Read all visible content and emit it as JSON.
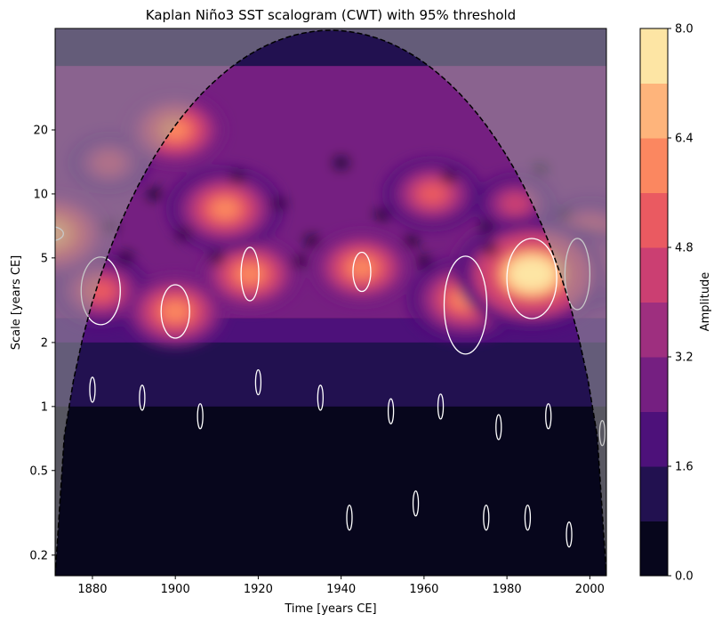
{
  "chart_data": {
    "type": "heatmap",
    "title": "Kaplan Niño3 SST scalogram (CWT) with 95% threshold",
    "xlabel": "Time [years CE]",
    "ylabel": "Scale [years CE]",
    "xlim": [
      1871,
      2004
    ],
    "ylim": [
      0.16,
      60
    ],
    "yscale": "log",
    "xticks": [
      "1880",
      "1900",
      "1920",
      "1940",
      "1960",
      "1980",
      "2000"
    ],
    "yticks": [
      "0.2",
      "0.5",
      "1",
      "2",
      "5",
      "10",
      "20"
    ],
    "colorbar": {
      "label": "Amplitude",
      "levels": [
        0.0,
        0.8,
        1.6,
        2.4,
        3.2,
        4.0,
        4.8,
        5.6,
        6.4,
        7.2,
        8.0
      ],
      "ticks": [
        "0.0",
        "1.6",
        "3.2",
        "4.8",
        "6.4",
        "8.0"
      ],
      "colors": [
        "#07061c",
        "#221150",
        "#4d117a",
        "#751f81",
        "#9e2f7f",
        "#cb3f72",
        "#ea5a61",
        "#fb8760",
        "#feb47b",
        "#fde5a4"
      ]
    },
    "cone_of_influence": "dashed black",
    "significance_contour": "white",
    "peaks": [
      {
        "x": 1870,
        "y": 6.5,
        "v": 6.6
      },
      {
        "x": 1882,
        "y": 3.5,
        "v": 5.6
      },
      {
        "x": 1884,
        "y": 14,
        "v": 4.6
      },
      {
        "x": 1900,
        "y": 2.8,
        "v": 5.7
      },
      {
        "x": 1900,
        "y": 20,
        "v": 5.8
      },
      {
        "x": 1912,
        "y": 8.5,
        "v": 6.2
      },
      {
        "x": 1918,
        "y": 4.2,
        "v": 5.8
      },
      {
        "x": 1945,
        "y": 4.5,
        "v": 5.8
      },
      {
        "x": 1962,
        "y": 10,
        "v": 5.5
      },
      {
        "x": 1970,
        "y": 3.2,
        "v": 6.2
      },
      {
        "x": 1983,
        "y": 4.5,
        "v": 7.5
      },
      {
        "x": 1986,
        "y": 4.2,
        "v": 8.0
      },
      {
        "x": 1997,
        "y": 4.5,
        "v": 6.2
      },
      {
        "x": 1982,
        "y": 9,
        "v": 4.6
      },
      {
        "x": 2000,
        "y": 6.5,
        "v": 5.6
      }
    ]
  }
}
